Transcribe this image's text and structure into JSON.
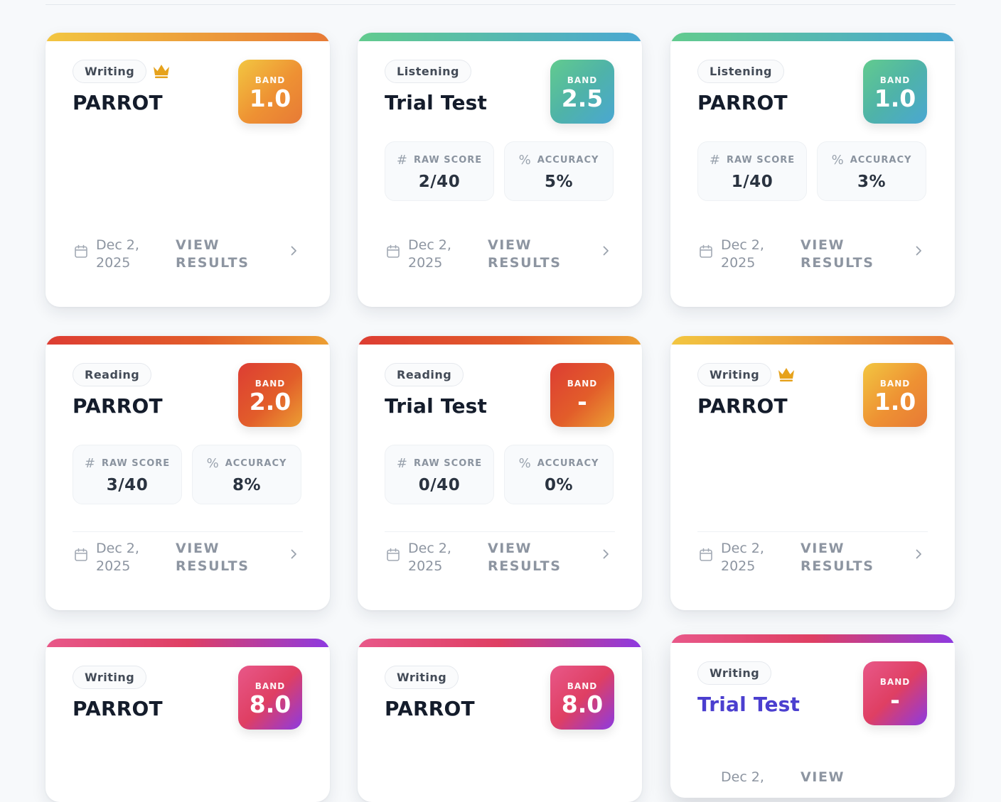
{
  "cards": [
    {
      "type": "Writing",
      "title": "PARROT",
      "band_label": "BAND",
      "band": "1.0",
      "date": "Dec 2, 2025",
      "view_label": "VIEW RESULTS"
    },
    {
      "type": "Listening",
      "title": "Trial Test",
      "band_label": "BAND",
      "band": "2.5",
      "raw_label": "RAW SCORE",
      "raw": "2/40",
      "acc_label": "ACCURACY",
      "acc": "5%",
      "date": "Dec 2, 2025",
      "view_label": "VIEW RESULTS"
    },
    {
      "type": "Listening",
      "title": "PARROT",
      "band_label": "BAND",
      "band": "1.0",
      "raw_label": "RAW SCORE",
      "raw": "1/40",
      "acc_label": "ACCURACY",
      "acc": "3%",
      "date": "Dec 2, 2025",
      "view_label": "VIEW RESULTS"
    },
    {
      "type": "Reading",
      "title": "PARROT",
      "band_label": "BAND",
      "band": "2.0",
      "raw_label": "RAW SCORE",
      "raw": "3/40",
      "acc_label": "ACCURACY",
      "acc": "8%",
      "date": "Dec 2, 2025",
      "view_label": "VIEW RESULTS"
    },
    {
      "type": "Reading",
      "title": "Trial Test",
      "band_label": "BAND",
      "band": "-",
      "raw_label": "RAW SCORE",
      "raw": "0/40",
      "acc_label": "ACCURACY",
      "acc": "0%",
      "date": "Dec 2, 2025",
      "view_label": "VIEW RESULTS"
    },
    {
      "type": "Writing",
      "title": "PARROT",
      "band_label": "BAND",
      "band": "1.0",
      "date": "Dec 2, 2025",
      "view_label": "VIEW RESULTS"
    },
    {
      "type": "Writing",
      "title": "PARROT",
      "band_label": "BAND",
      "band": "8.0"
    },
    {
      "type": "Writing",
      "title": "PARROT",
      "band_label": "BAND",
      "band": "8.0"
    },
    {
      "type": "Writing",
      "title": "Trial Test",
      "band_label": "BAND",
      "band": "-",
      "date": "Dec 2,",
      "view_label": "VIEW"
    }
  ],
  "colors": {
    "orange_gradient": [
      "#f2c641",
      "#e77a36"
    ],
    "teal_gradient": [
      "#62cb8e",
      "#4aa7d2"
    ],
    "red_gradient": [
      "#dd3d33",
      "#ec9f33"
    ],
    "pink_gradient": [
      "#e85889",
      "#8d3ae1"
    ],
    "crown": "#e6a21c",
    "accent_title": "#4b3fcf"
  },
  "icons": {
    "crown": "crown-icon",
    "raw_score": "hash-icon",
    "accuracy": "percent-icon",
    "date": "calendar-icon",
    "view": "chevron-right-icon"
  }
}
